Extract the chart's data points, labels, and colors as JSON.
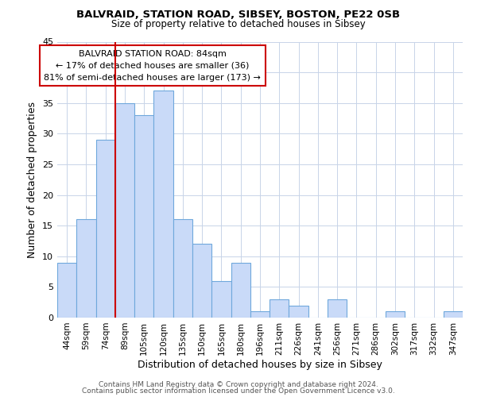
{
  "title": "BALVRAID, STATION ROAD, SIBSEY, BOSTON, PE22 0SB",
  "subtitle": "Size of property relative to detached houses in Sibsey",
  "xlabel": "Distribution of detached houses by size in Sibsey",
  "ylabel": "Number of detached properties",
  "bar_labels": [
    "44sqm",
    "59sqm",
    "74sqm",
    "89sqm",
    "105sqm",
    "120sqm",
    "135sqm",
    "150sqm",
    "165sqm",
    "180sqm",
    "196sqm",
    "211sqm",
    "226sqm",
    "241sqm",
    "256sqm",
    "271sqm",
    "286sqm",
    "302sqm",
    "317sqm",
    "332sqm",
    "347sqm"
  ],
  "bar_values": [
    9,
    16,
    29,
    35,
    33,
    37,
    16,
    12,
    6,
    9,
    1,
    3,
    2,
    0,
    3,
    0,
    0,
    1,
    0,
    0,
    1
  ],
  "bar_color": "#c9daf8",
  "bar_edge_color": "#6fa8dc",
  "vline_x_index": 3,
  "vline_color": "#cc0000",
  "ylim": [
    0,
    45
  ],
  "yticks": [
    0,
    5,
    10,
    15,
    20,
    25,
    30,
    35,
    40,
    45
  ],
  "annotation_title": "BALVRAID STATION ROAD: 84sqm",
  "annotation_line1": "← 17% of detached houses are smaller (36)",
  "annotation_line2": "81% of semi-detached houses are larger (173) →",
  "annotation_box_color": "#ffffff",
  "annotation_box_edge": "#cc0000",
  "footer1": "Contains HM Land Registry data © Crown copyright and database right 2024.",
  "footer2": "Contains public sector information licensed under the Open Government Licence v3.0.",
  "bg_color": "#ffffff",
  "grid_color": "#c8d4e8"
}
